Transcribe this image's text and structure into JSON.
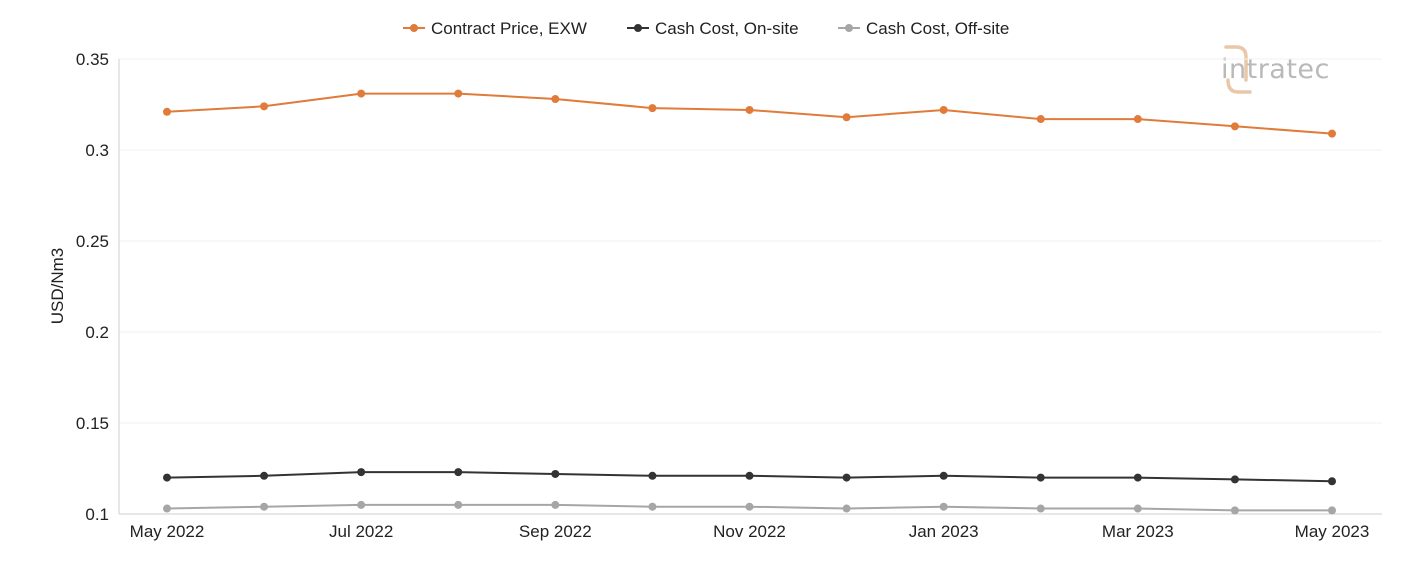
{
  "brand": {
    "logo_text": "intratec",
    "logo_color": "#b9b9b9",
    "logo_accent_color": "#e9c7a8"
  },
  "chart_data": {
    "type": "line",
    "title": "",
    "xlabel": "",
    "ylabel": "USD/Nm3",
    "ylim": [
      0.1,
      0.35
    ],
    "yticks": [
      "0.1",
      "0.15",
      "0.2",
      "0.25",
      "0.3",
      "0.35"
    ],
    "grid": "horizontal",
    "legend_position": "top-center",
    "categories": [
      "May 2022",
      "Jun 2022",
      "Jul 2022",
      "Aug 2022",
      "Sep 2022",
      "Oct 2022",
      "Nov 2022",
      "Dec 2022",
      "Jan 2023",
      "Feb 2023",
      "Mar 2023",
      "Apr 2023",
      "May 2023"
    ],
    "xticks_shown": [
      "May 2022",
      "Jul 2022",
      "Sep 2022",
      "Nov 2022",
      "Jan 2023",
      "Mar 2023",
      "May 2023"
    ],
    "series": [
      {
        "name": "Contract Price, EXW",
        "color": "#e07b39",
        "values": [
          0.321,
          0.324,
          0.331,
          0.331,
          0.328,
          0.323,
          0.322,
          0.318,
          0.322,
          0.317,
          0.317,
          0.313,
          0.309
        ]
      },
      {
        "name": "Cash Cost, On-site",
        "color": "#333333",
        "values": [
          0.12,
          0.121,
          0.123,
          0.123,
          0.122,
          0.121,
          0.121,
          0.12,
          0.121,
          0.12,
          0.12,
          0.119,
          0.118
        ]
      },
      {
        "name": "Cash Cost, Off-site",
        "color": "#a6a6a6",
        "values": [
          0.103,
          0.104,
          0.105,
          0.105,
          0.105,
          0.104,
          0.104,
          0.103,
          0.104,
          0.103,
          0.103,
          0.102,
          0.102
        ]
      }
    ]
  }
}
